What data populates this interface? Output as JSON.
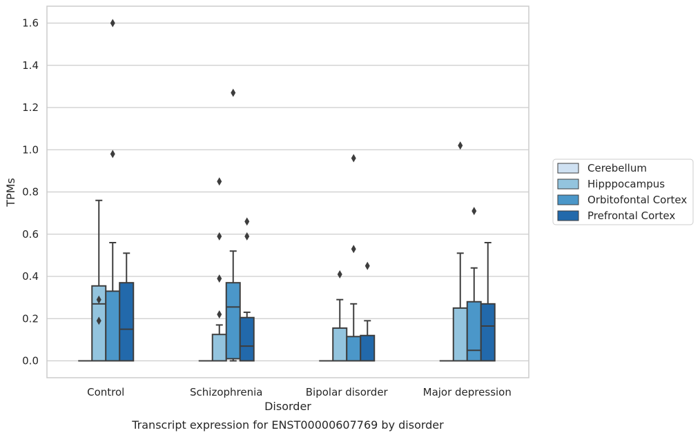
{
  "chart_data": {
    "type": "box",
    "caption": "Transcript expression for ENST00000607769 by disorder",
    "xlabel": "Disorder",
    "ylabel": "TPMs",
    "ylim": [
      -0.08,
      1.68
    ],
    "yticks": [
      "0.0",
      "0.2",
      "0.4",
      "0.6",
      "0.8",
      "1.0",
      "1.2",
      "1.4",
      "1.6"
    ],
    "grid": true,
    "legend_position": "right",
    "categories": [
      "Control",
      "Schizophrenia",
      "Bipolar disorder",
      "Major depression"
    ],
    "series": [
      {
        "name": "Cerebellum",
        "color": "#cfe1f2",
        "boxes": [
          {
            "whisker_low": 0,
            "q1": 0,
            "median": 0,
            "q3": 0,
            "whisker_high": 0,
            "outliers": []
          },
          {
            "whisker_low": 0,
            "q1": 0,
            "median": 0,
            "q3": 0,
            "whisker_high": 0,
            "outliers": []
          },
          {
            "whisker_low": 0,
            "q1": 0,
            "median": 0,
            "q3": 0,
            "whisker_high": 0,
            "outliers": []
          },
          {
            "whisker_low": 0,
            "q1": 0,
            "median": 0,
            "q3": 0,
            "whisker_high": 0,
            "outliers": []
          }
        ]
      },
      {
        "name": "Hipppocampus",
        "color": "#93c4de",
        "boxes": [
          {
            "whisker_low": 0,
            "q1": 0,
            "median": 0.27,
            "q3": 0.355,
            "whisker_high": 0.76,
            "outliers": [
              0.29,
              0.19
            ]
          },
          {
            "whisker_low": 0,
            "q1": 0,
            "median": 0,
            "q3": 0.125,
            "whisker_high": 0.17,
            "outliers": [
              0.22,
              0.39,
              0.59,
              0.85
            ]
          },
          {
            "whisker_low": 0,
            "q1": 0,
            "median": 0,
            "q3": 0.155,
            "whisker_high": 0.29,
            "outliers": [
              0.41
            ]
          },
          {
            "whisker_low": 0,
            "q1": 0,
            "median": 0,
            "q3": 0.25,
            "whisker_high": 0.51,
            "outliers": [
              1.02
            ]
          }
        ]
      },
      {
        "name": "Orbitofontal Cortex",
        "color": "#4b97c9",
        "boxes": [
          {
            "whisker_low": 0,
            "q1": 0,
            "median": 0,
            "q3": 0.33,
            "whisker_high": 0.56,
            "outliers": [
              0.98,
              1.6
            ]
          },
          {
            "whisker_low": 0,
            "q1": 0.01,
            "median": 0.255,
            "q3": 0.37,
            "whisker_high": 0.52,
            "outliers": [
              1.27
            ]
          },
          {
            "whisker_low": 0,
            "q1": 0,
            "median": 0,
            "q3": 0.115,
            "whisker_high": 0.27,
            "outliers": [
              0.53,
              0.96
            ]
          },
          {
            "whisker_low": 0,
            "q1": 0,
            "median": 0.05,
            "q3": 0.28,
            "whisker_high": 0.44,
            "outliers": [
              0.71
            ]
          }
        ]
      },
      {
        "name": "Prefrontal Cortex",
        "color": "#2269ab",
        "boxes": [
          {
            "whisker_low": 0,
            "q1": 0,
            "median": 0.15,
            "q3": 0.37,
            "whisker_high": 0.51,
            "outliers": []
          },
          {
            "whisker_low": 0,
            "q1": 0,
            "median": 0.07,
            "q3": 0.205,
            "whisker_high": 0.23,
            "outliers": [
              0.59,
              0.66
            ]
          },
          {
            "whisker_low": 0,
            "q1": 0,
            "median": 0,
            "q3": 0.12,
            "whisker_high": 0.19,
            "outliers": [
              0.45
            ]
          },
          {
            "whisker_low": 0,
            "q1": 0,
            "median": 0.165,
            "q3": 0.27,
            "whisker_high": 0.56,
            "outliers": []
          }
        ]
      }
    ]
  }
}
